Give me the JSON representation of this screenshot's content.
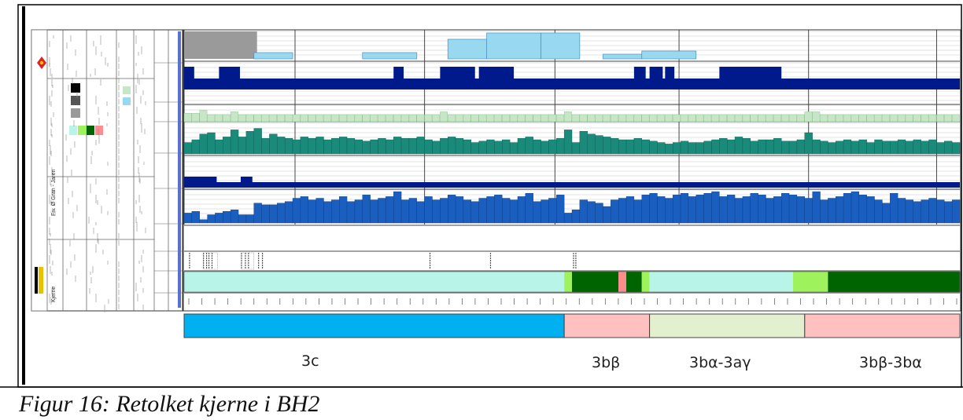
{
  "caption": "Figur 16: Retolket kjerne i BH2",
  "units": [
    {
      "label": "3c",
      "color": "#00b0f0",
      "from": 0,
      "to": 49
    },
    {
      "label": "3bβ",
      "color": "#ffc0c0",
      "from": 49,
      "to": 60
    },
    {
      "label": "3bα-3aγ",
      "color": "#e2f0d0",
      "from": 60,
      "to": 80
    },
    {
      "label": "3bβ-3bα",
      "color": "#ffc0c0",
      "from": 80,
      "to": 100
    }
  ],
  "colors": {
    "tracks_bg": "#ffffff",
    "grid": "#c8c8c8",
    "frame": "#000000",
    "track1_gray": "#9a9a9a",
    "track1_light": "#99d9f0",
    "navy": "#001a8c",
    "pale_green": "#c7e6c7",
    "teal": "#1a8a7a",
    "blue": "#1a5fc0",
    "aqua": "#b8f5e8",
    "lime": "#9ef25c",
    "dark_green": "#006400",
    "salmon": "#ff8c8c"
  },
  "legend_panel": {
    "title": "Fiv. Ø Gran - Jaren",
    "section": "Kjerne",
    "icon": "borehole-log-icon"
  },
  "tracks": {
    "track1_light_segments": [
      [
        9,
        14
      ],
      [
        23,
        30
      ],
      [
        34,
        39
      ],
      [
        39,
        46
      ],
      [
        46,
        51
      ],
      [
        54,
        59
      ],
      [
        59,
        66
      ]
    ],
    "track2_high_segments": [
      [
        0,
        1.3
      ],
      [
        4.5,
        7.2
      ],
      [
        27,
        28.3
      ],
      [
        33,
        37.5
      ],
      [
        38,
        42.5
      ],
      [
        58,
        59.5
      ],
      [
        60,
        61.7
      ],
      [
        62,
        63.2
      ],
      [
        69,
        77
      ]
    ],
    "track3_values": [
      0.6,
      0.6,
      0.8,
      0.5,
      0.5,
      0.5,
      0.7,
      0.5,
      0.5,
      0.5,
      0.5,
      0.5,
      0.5,
      0.5,
      0.5,
      0.5,
      0.5,
      0.5,
      0.5,
      0.5,
      0.5,
      0.5,
      0.5,
      0.5,
      0.5,
      0.5,
      0.5,
      0.5,
      0.5,
      0.5,
      0.5,
      0.5,
      0.5,
      0.7,
      0.5,
      0.5,
      0.5,
      0.5,
      0.5,
      0.5,
      0.5,
      0.5,
      0.5,
      0.5,
      0.5,
      0.5,
      0.5,
      0.5,
      0.5,
      0.7,
      0.5,
      0.5,
      0.5,
      0.5,
      0.5,
      0.5,
      0.5,
      0.5,
      0.5,
      0.5,
      0.5,
      0.5,
      0.5,
      0.5,
      0.5,
      0.5,
      0.5,
      0.5,
      0.5,
      0.5,
      0.5,
      0.5,
      0.5,
      0.5,
      0.5,
      0.5,
      0.5,
      0.5,
      0.5,
      0.5,
      0.7,
      0.7,
      0.5,
      0.5,
      0.5,
      0.5,
      0.5,
      0.5,
      0.5,
      0.5,
      0.5,
      0.5,
      0.5,
      0.5,
      0.5,
      0.5,
      0.5,
      0.5,
      0.5,
      0.5
    ],
    "track4_values": [
      0.4,
      0.5,
      0.7,
      0.75,
      0.5,
      0.6,
      0.85,
      0.6,
      0.8,
      0.9,
      0.55,
      0.7,
      0.6,
      0.55,
      0.5,
      0.6,
      0.55,
      0.6,
      0.5,
      0.55,
      0.6,
      0.55,
      0.5,
      0.45,
      0.5,
      0.55,
      0.5,
      0.6,
      0.55,
      0.55,
      0.6,
      0.5,
      0.45,
      0.55,
      0.6,
      0.55,
      0.5,
      0.4,
      0.45,
      0.5,
      0.45,
      0.5,
      0.4,
      0.55,
      0.6,
      0.5,
      0.45,
      0.5,
      0.55,
      0.85,
      0.4,
      0.8,
      0.7,
      0.65,
      0.6,
      0.55,
      0.5,
      0.5,
      0.55,
      0.5,
      0.45,
      0.4,
      0.35,
      0.4,
      0.45,
      0.4,
      0.4,
      0.45,
      0.5,
      0.55,
      0.5,
      0.6,
      0.55,
      0.45,
      0.5,
      0.5,
      0.55,
      0.45,
      0.45,
      0.5,
      0.75,
      0.5,
      0.45,
      0.4,
      0.45,
      0.5,
      0.45,
      0.5,
      0.4,
      0.5,
      0.45,
      0.45,
      0.5,
      0.45,
      0.5,
      0.45,
      0.5,
      0.4,
      0.45,
      0.4
    ],
    "track6_values": [
      0.3,
      0.35,
      0.1,
      0.25,
      0.3,
      0.35,
      0.4,
      0.25,
      0.25,
      0.6,
      0.55,
      0.55,
      0.6,
      0.65,
      0.75,
      0.8,
      0.7,
      0.75,
      0.65,
      0.7,
      0.8,
      0.65,
      0.7,
      0.85,
      0.7,
      0.75,
      0.8,
      0.95,
      0.7,
      0.75,
      0.65,
      0.8,
      0.7,
      0.75,
      0.85,
      0.8,
      0.7,
      0.65,
      0.75,
      0.8,
      0.85,
      0.75,
      0.7,
      0.8,
      0.9,
      0.65,
      0.7,
      0.75,
      0.85,
      0.3,
      0.4,
      0.7,
      0.65,
      0.6,
      0.5,
      0.7,
      0.75,
      0.8,
      0.7,
      0.85,
      0.9,
      0.8,
      0.75,
      0.85,
      0.9,
      0.8,
      0.85,
      0.9,
      0.95,
      0.8,
      0.85,
      0.75,
      0.8,
      0.9,
      0.85,
      0.75,
      0.8,
      0.9,
      0.85,
      0.8,
      0.75,
      0.95,
      0.7,
      0.75,
      0.8,
      0.9,
      0.95,
      0.85,
      0.8,
      0.7,
      0.6,
      0.9,
      0.75,
      0.7,
      0.65,
      0.7,
      0.75,
      0.7,
      0.65,
      0.7
    ],
    "core_segments": [
      {
        "from": 0,
        "to": 49,
        "color": "aqua"
      },
      {
        "from": 49,
        "to": 50,
        "color": "lime"
      },
      {
        "from": 50,
        "to": 56,
        "color": "dark_green"
      },
      {
        "from": 56,
        "to": 57,
        "color": "salmon"
      },
      {
        "from": 57,
        "to": 59,
        "color": "dark_green"
      },
      {
        "from": 59,
        "to": 60,
        "color": "lime"
      },
      {
        "from": 60,
        "to": 78.5,
        "color": "aqua"
      },
      {
        "from": 78.5,
        "to": 83,
        "color": "lime"
      },
      {
        "from": 83,
        "to": 100,
        "color": "dark_green"
      }
    ]
  }
}
